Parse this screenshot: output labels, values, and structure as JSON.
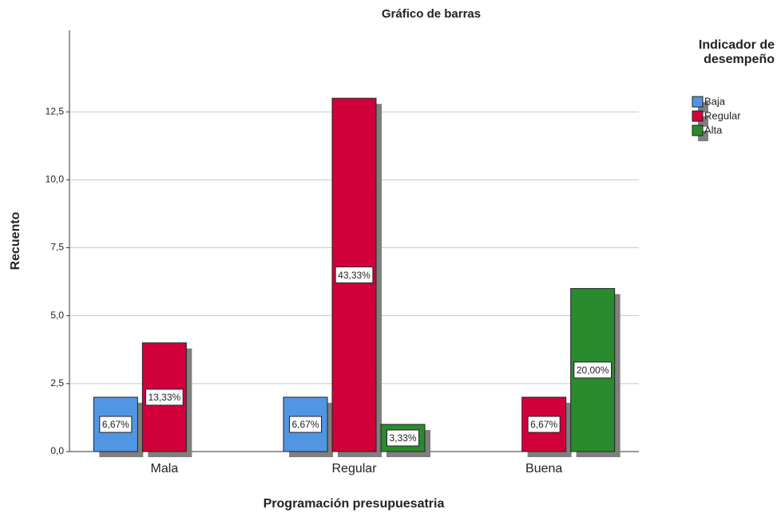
{
  "chart_data": {
    "type": "bar",
    "title": "Gráfico de barras",
    "x_label": "Programación presupuesatria",
    "y_label": "Recuento",
    "legend_title": "Indicador de desempeño",
    "categories": [
      "Mala",
      "Regular",
      "Buena"
    ],
    "series": [
      {
        "name": "Baja",
        "color": "#5196e3",
        "values": [
          2,
          2,
          null
        ],
        "percent_labels": [
          "6,67%",
          "6,67%",
          null
        ]
      },
      {
        "name": "Regular",
        "color": "#d1003a",
        "values": [
          4,
          13,
          2
        ],
        "percent_labels": [
          "13,33%",
          "43,33%",
          "6,67%"
        ]
      },
      {
        "name": "Alta",
        "color": "#2a8a2e",
        "values": [
          null,
          1,
          6
        ],
        "percent_labels": [
          null,
          "3,33%",
          "20,00%"
        ]
      }
    ],
    "ylim": [
      0,
      15.5
    ],
    "yticks": [
      {
        "value": 0,
        "label": "0,0"
      },
      {
        "value": 2.5,
        "label": "2,5"
      },
      {
        "value": 5,
        "label": "5,0"
      },
      {
        "value": 7.5,
        "label": "7,5"
      },
      {
        "value": 10,
        "label": "10,0"
      },
      {
        "value": 12.5,
        "label": "12,5"
      }
    ],
    "grid": true
  }
}
